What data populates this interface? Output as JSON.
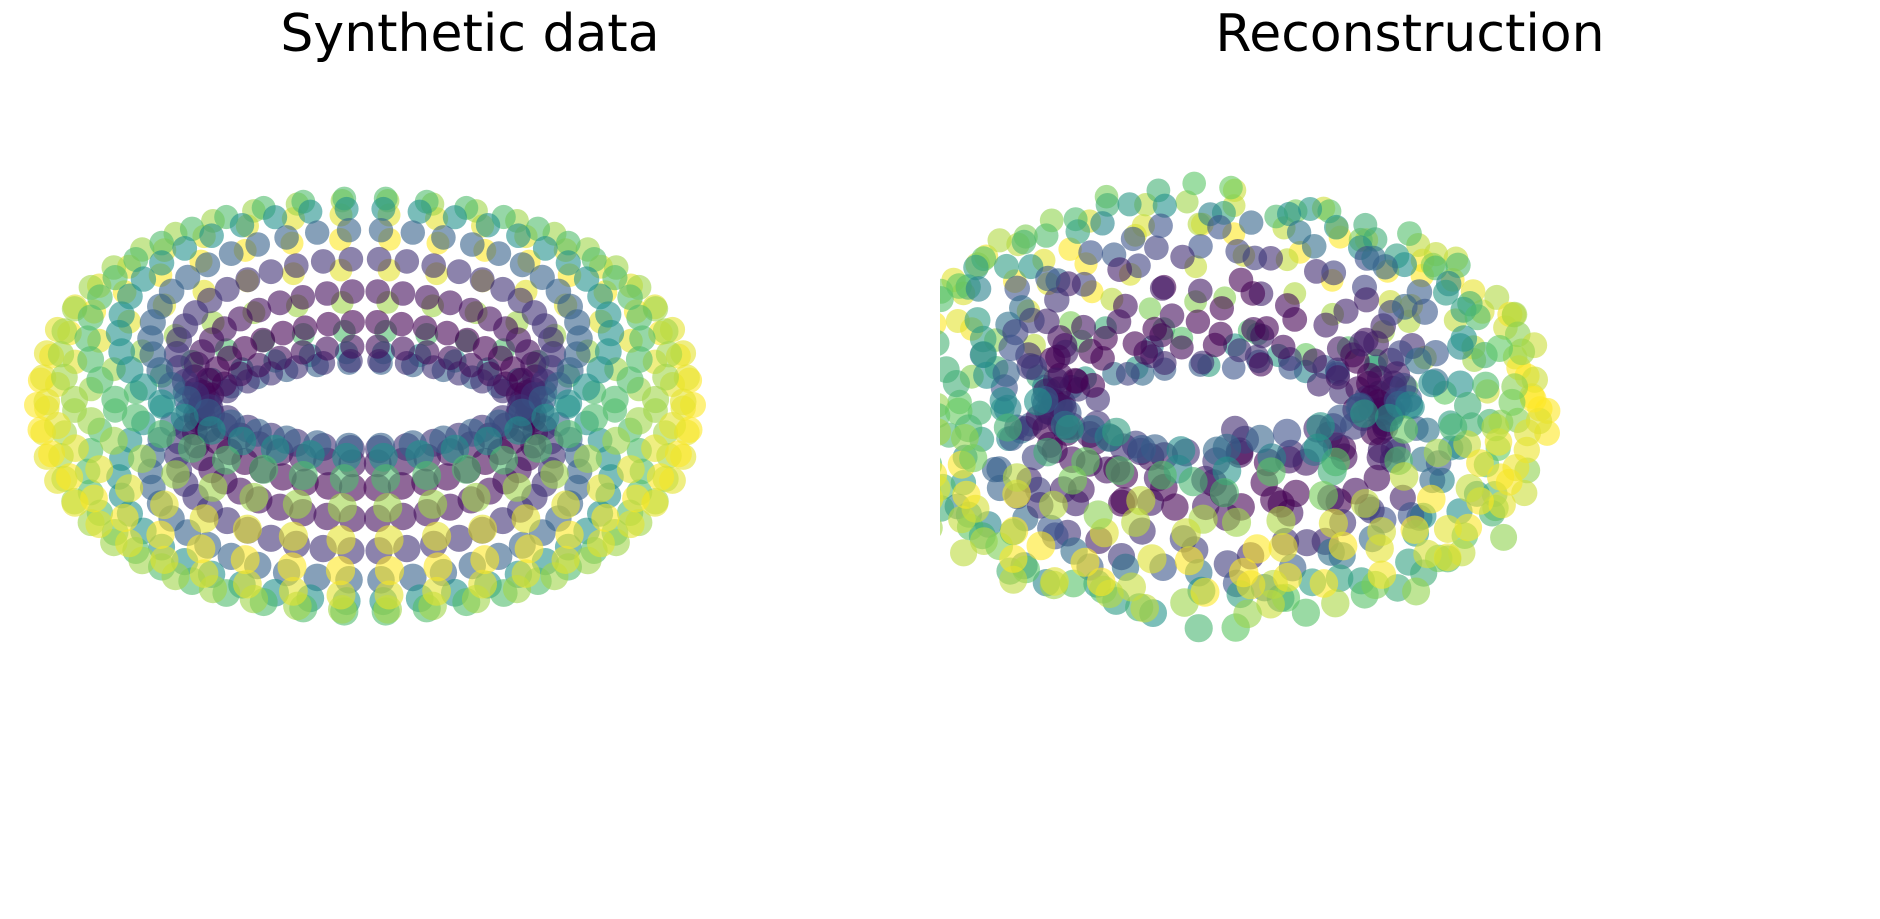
{
  "chart_data": [
    {
      "type": "scatter",
      "subtype": "3d-scatter",
      "title": "Synthetic data",
      "shape": "torus",
      "axes_visible": false,
      "grid": false,
      "colormap": "viridis",
      "color_encoding": "height (low = purple, high = yellow)",
      "colormap_stops": [
        "#440154",
        "#3b528b",
        "#21918c",
        "#5ec962",
        "#fde725"
      ],
      "torus": {
        "major_radius": 3,
        "minor_radius": 1,
        "rings": 42,
        "points_per_ring": 16
      },
      "view": {
        "elevation_deg": 30,
        "azimuth_deg": -60
      },
      "marker": {
        "alpha": 0.6
      }
    },
    {
      "type": "scatter",
      "subtype": "3d-scatter",
      "title": "Reconstruction",
      "shape": "torus",
      "axes_visible": false,
      "grid": false,
      "colormap": "viridis",
      "color_encoding": "height (low = purple, high = yellow)",
      "colormap_stops": [
        "#440154",
        "#3b528b",
        "#21918c",
        "#5ec962",
        "#fde725"
      ],
      "torus": {
        "major_radius": 3,
        "minor_radius": 1,
        "rings": 42,
        "points_per_ring": 16
      },
      "view": {
        "elevation_deg": 30,
        "azimuth_deg": -60
      },
      "marker": {
        "alpha": 0.6
      }
    }
  ]
}
